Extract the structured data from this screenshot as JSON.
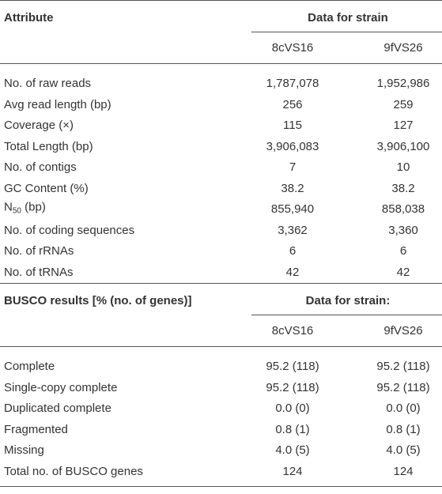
{
  "sections": [
    {
      "header": {
        "attribute": "Attribute",
        "group": "Data for strain",
        "columns": [
          "8cVS16",
          "9fVS26"
        ]
      },
      "rows": [
        [
          "No. of raw reads",
          "1,787,078",
          "1,952,986"
        ],
        [
          "Avg read length (bp)",
          "256",
          "259"
        ],
        [
          "Coverage (×)",
          "115",
          "127"
        ],
        [
          "Total Length (bp)",
          "3,906,083",
          "3,906,100"
        ],
        [
          "No. of contigs",
          "7",
          "10"
        ],
        [
          "GC Content (%)",
          "38.2",
          "38.2"
        ],
        [
          {
            "base": "N",
            "subscript": "50",
            "suffix": " (bp)"
          },
          "855,940",
          "858,038"
        ],
        [
          "No. of coding sequences",
          "3,362",
          "3,360"
        ],
        [
          "No. of rRNAs",
          "6",
          "6"
        ],
        [
          "No. of tRNAs",
          "42",
          "42"
        ]
      ]
    },
    {
      "header": {
        "attribute": "BUSCO results [% (no. of genes)]",
        "group": "Data for strain:",
        "columns": [
          "8cVS16",
          "9fVS26"
        ]
      },
      "rows": [
        [
          "Complete",
          "95.2 (118)",
          "95.2 (118)"
        ],
        [
          "Single-copy complete",
          "95.2 (118)",
          "95.2 (118)"
        ],
        [
          "Duplicated complete",
          "0.0 (0)",
          "0.0 (0)"
        ],
        [
          "Fragmented",
          "0.8 (1)",
          "0.8 (1)"
        ],
        [
          "Missing",
          "4.0 (5)",
          "4.0 (5)"
        ],
        [
          "Total no. of BUSCO genes",
          "124",
          "124"
        ]
      ]
    }
  ]
}
